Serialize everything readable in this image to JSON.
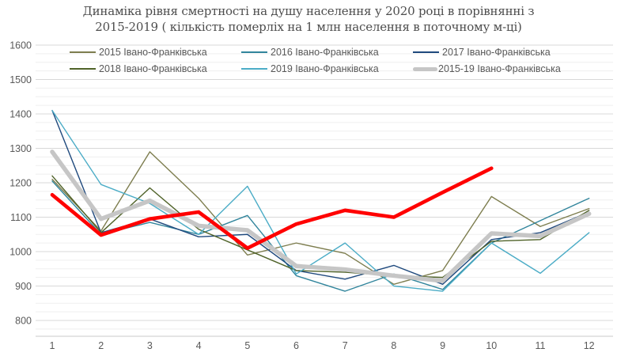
{
  "title": {
    "line1": "Динаміка рівня смертності на душу населення у 2020 році в порівнянні з",
    "line2": "2015-2019 ( кількість померліх на 1 млн населення в поточному м-ці)"
  },
  "chart_data": {
    "type": "line",
    "x": [
      "1",
      "2",
      "3",
      "4",
      "5",
      "6",
      "7",
      "8",
      "9",
      "10",
      "11",
      "12"
    ],
    "xlabel": "",
    "ylabel": "",
    "ylim": [
      750,
      1600
    ],
    "y_ticks": [
      "800",
      "900",
      "1000",
      "1100",
      "1200",
      "1300",
      "1400",
      "1500",
      "1600"
    ],
    "grid": {
      "major": true,
      "minor": true,
      "minor_step": 25
    },
    "legend_position": "top",
    "colors": {
      "grid_major": "#d8d8d8",
      "grid_minor": "#efefef",
      "axis_line": "#c9c9c9",
      "tick_text": "#595959",
      "title_text": "#4d4d4d",
      "accent_2020": "#ff0000"
    },
    "series": [
      {
        "id": "2015",
        "name": "2015 Івано-Франківська",
        "color": "#7d7d4e",
        "width": 1.4,
        "in_legend": true,
        "values": [
          1210,
          1060,
          1290,
          1155,
          990,
          1025,
          995,
          905,
          945,
          1160,
          1073,
          1125
        ]
      },
      {
        "id": "2016",
        "name": "2016 Івано-Франківська",
        "color": "#31859c",
        "width": 1.4,
        "in_legend": true,
        "values": [
          1205,
          1050,
          1085,
          1050,
          1105,
          930,
          885,
          935,
          890,
          1025,
          1090,
          1155
        ]
      },
      {
        "id": "2017",
        "name": "2017 Івано-Франківська",
        "color": "#1f497d",
        "width": 1.4,
        "in_legend": true,
        "values": [
          1410,
          1055,
          1095,
          1043,
          1050,
          945,
          920,
          960,
          905,
          1035,
          1055,
          1115
        ]
      },
      {
        "id": "2018",
        "name": "2018 Івано-Франківська",
        "color": "#4f6228",
        "width": 1.4,
        "in_legend": true,
        "values": [
          1220,
          1055,
          1185,
          1065,
          1005,
          945,
          940,
          930,
          925,
          1030,
          1035,
          1120
        ]
      },
      {
        "id": "2019",
        "name": "2019 Івано-Франківська",
        "color": "#4bacc6",
        "width": 1.4,
        "in_legend": true,
        "values": [
          1410,
          1195,
          1140,
          1050,
          1190,
          935,
          1025,
          900,
          885,
          1025,
          937,
          1055
        ]
      },
      {
        "id": "2015-19",
        "name": "2015-19 Івано-Франківська",
        "color": "#c6c6c6",
        "width": 5.5,
        "in_legend": true,
        "values": [
          1290,
          1095,
          1148,
          1075,
          1062,
          958,
          948,
          930,
          915,
          1053,
          1045,
          1110
        ]
      },
      {
        "id": "2020",
        "name": "2020",
        "color": "#ff0000",
        "width": 4.6,
        "in_legend": false,
        "values": [
          1165,
          1048,
          1095,
          1115,
          1010,
          1080,
          1120,
          1100,
          1172,
          1242,
          null,
          null
        ]
      }
    ]
  }
}
